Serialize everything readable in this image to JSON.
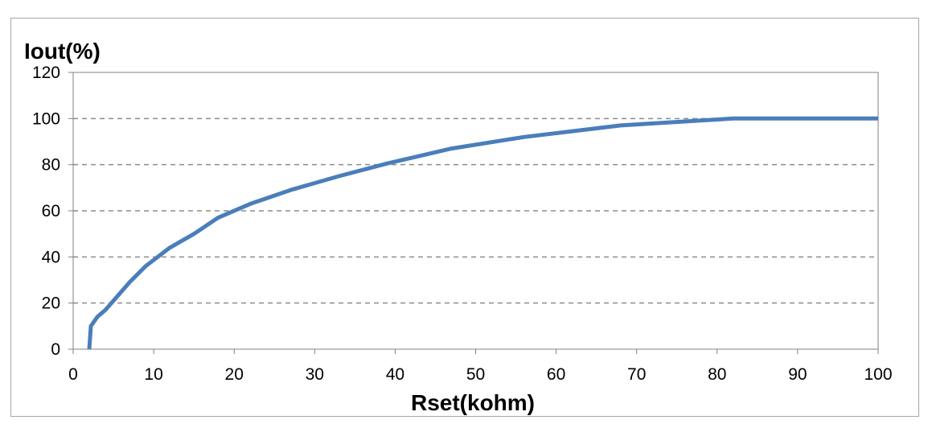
{
  "chart_data": {
    "type": "line",
    "title": "",
    "xlabel": "Rset(kohm)",
    "ylabel": "Iout(%)",
    "xlim": [
      0,
      100
    ],
    "ylim": [
      0,
      120
    ],
    "xticks": [
      0,
      10,
      20,
      30,
      40,
      50,
      60,
      70,
      80,
      90,
      100
    ],
    "yticks": [
      0,
      20,
      40,
      60,
      80,
      100,
      120
    ],
    "grid": "horizontal dashed",
    "legend": "none",
    "series": [
      {
        "color": "#4a7ebb",
        "x": [
          2,
          2.2,
          3,
          4,
          5,
          7,
          9,
          12,
          15,
          18,
          22,
          27,
          33,
          39,
          47,
          56,
          68,
          82,
          100
        ],
        "y": [
          0,
          10,
          14,
          17,
          21,
          29,
          36,
          44,
          50,
          57,
          63,
          69,
          75,
          80.5,
          87,
          92,
          97,
          100,
          100
        ]
      }
    ]
  }
}
